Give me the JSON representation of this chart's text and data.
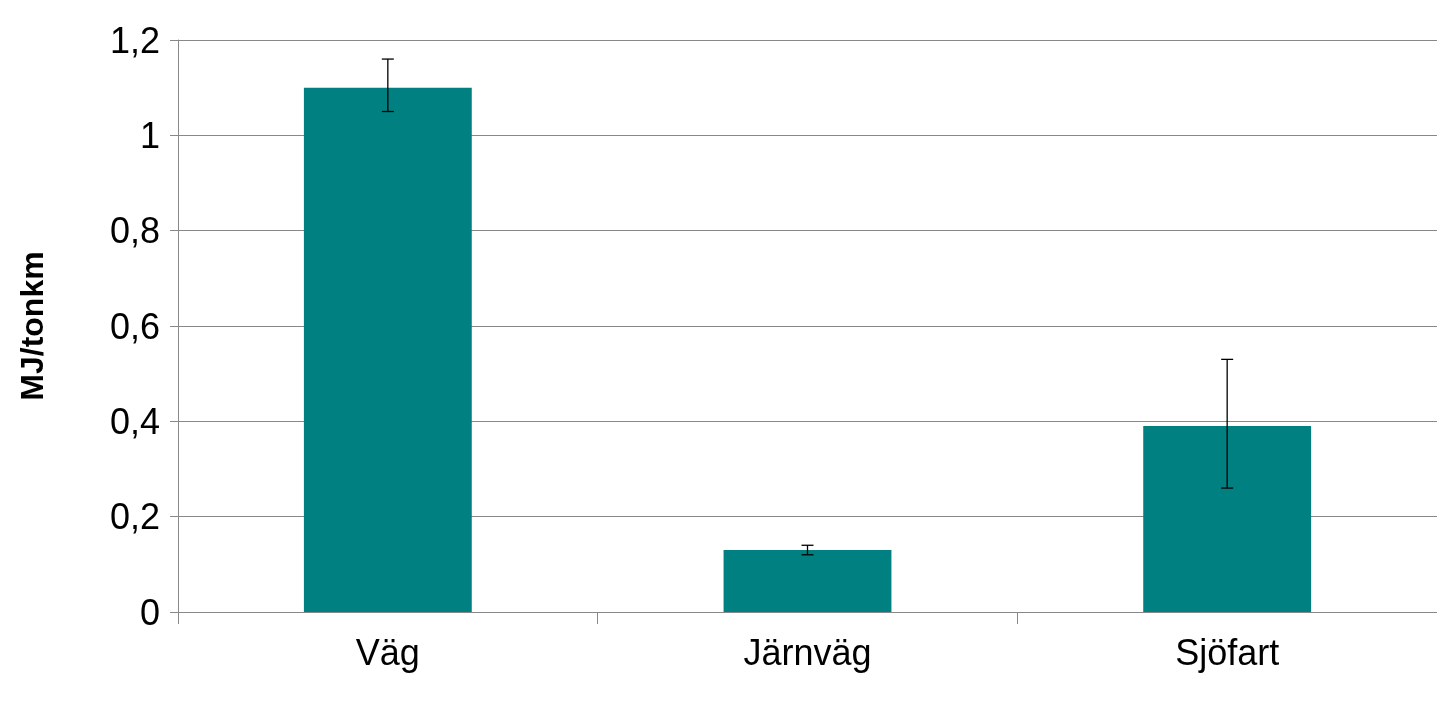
{
  "chart_data": {
    "type": "bar",
    "ylabel": "MJ/tonkm",
    "categories": [
      "Väg",
      "Järnväg",
      "Sjöfart"
    ],
    "values": [
      1.1,
      0.13,
      0.39
    ],
    "errors": [
      [
        1.05,
        1.16
      ],
      [
        0.12,
        0.14
      ],
      [
        0.26,
        0.53
      ]
    ],
    "color": "#008080",
    "ylim": [
      0,
      1.2
    ],
    "yticks": [
      0,
      {
        "value": 0.2,
        "label": "0,2"
      },
      {
        "value": 0.4,
        "label": "0,4"
      },
      {
        "value": 0.6,
        "label": "0,6"
      },
      {
        "value": 0.8,
        "label": "0,8"
      },
      1,
      {
        "value": 1.2,
        "label": "1,2"
      }
    ],
    "grid": "y"
  }
}
